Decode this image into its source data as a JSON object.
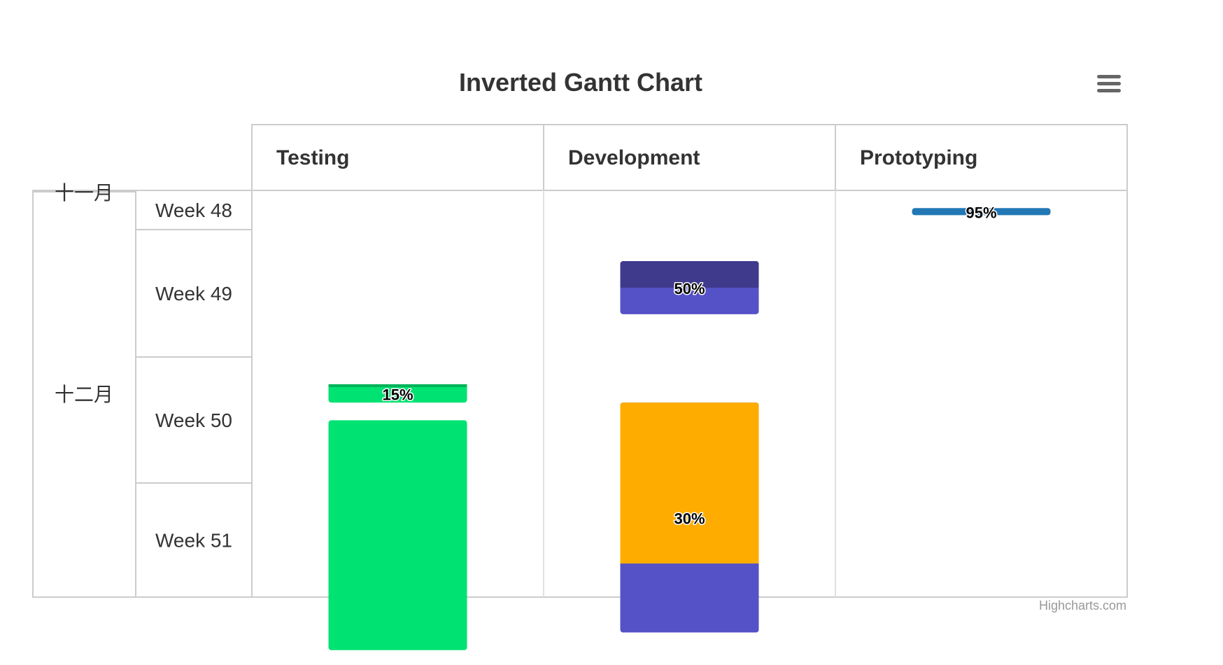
{
  "menu_icon": "hamburger-menu-icon",
  "chart_data": {
    "type": "gantt",
    "inverted": true,
    "title": "Inverted Gantt Chart",
    "categories": [
      "Testing",
      "Development",
      "Prototyping"
    ],
    "months": [
      {
        "label": "十一月",
        "weeks": 1
      },
      {
        "label": "十二月",
        "weeks": 4
      }
    ],
    "week_labels": [
      "Week 48",
      "Week 49",
      "Week 50",
      "Week 51"
    ],
    "time_range": [
      "2014-11-30",
      "2014-12-23"
    ],
    "tasks": [
      {
        "category": "Prototyping",
        "start": "2014-12-01",
        "end": "2014-12-01.4",
        "completed": 0.95,
        "label": "95%",
        "color": "#2278b5",
        "progress_color": "#1a5d8c"
      },
      {
        "category": "Development",
        "start": "2014-12-04",
        "end": "2014-12-07",
        "completed": 0.5,
        "label": "50%",
        "color": "#5551c6",
        "progress_color": "#3f3a8c"
      },
      {
        "category": "Testing",
        "start": "2014-12-11",
        "end": "2014-12-12",
        "completed": 0.15,
        "label": "15%",
        "color": "#00e272",
        "progress_color": "#00b35a"
      },
      {
        "category": "Development",
        "start": "2014-12-12",
        "end": "2014-12-25",
        "completed": 0.3,
        "label": "30%",
        "color": "#5551c6",
        "progress_color": "#fead00"
      },
      {
        "category": "Testing",
        "start": "2014-12-13",
        "end": "2014-12-26",
        "completed": null,
        "label": "",
        "color": "#00e272",
        "progress_color": "#00e272"
      }
    ],
    "credits": "Highcharts.com"
  }
}
